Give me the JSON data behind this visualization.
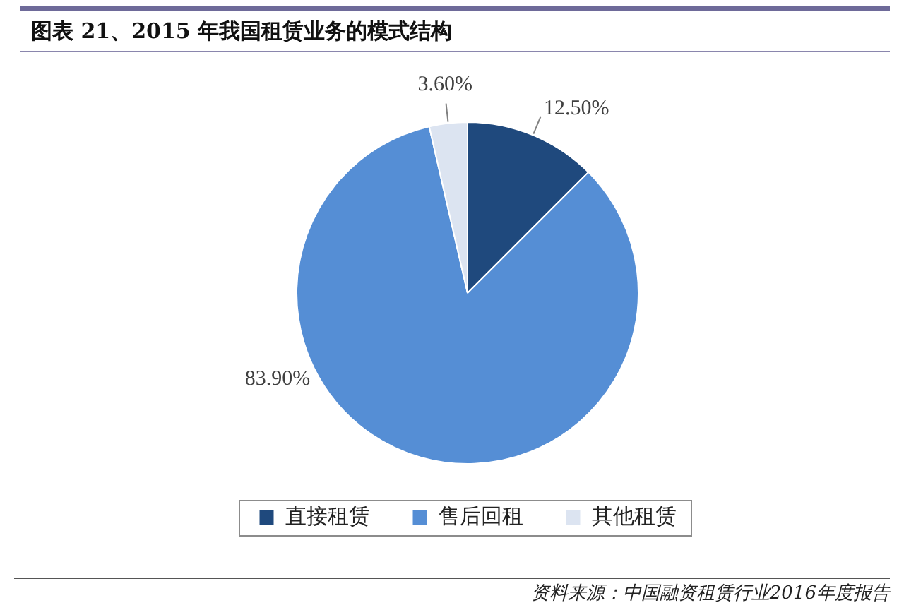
{
  "chart_data": {
    "type": "pie",
    "title": "图表 21、2015 年我国租赁业务的模式结构",
    "categories": [
      "直接租赁",
      "售后回租",
      "其他租赁"
    ],
    "values": [
      12.5,
      83.9,
      3.6
    ],
    "colors": [
      "#1f497d",
      "#558ed5",
      "#dce4f1"
    ],
    "value_labels": [
      "12.50%",
      "83.90%",
      "3.60%"
    ],
    "legend": "bottom",
    "annotations": [
      "资料来源：中国融资租赁行业2016年度报告"
    ]
  }
}
